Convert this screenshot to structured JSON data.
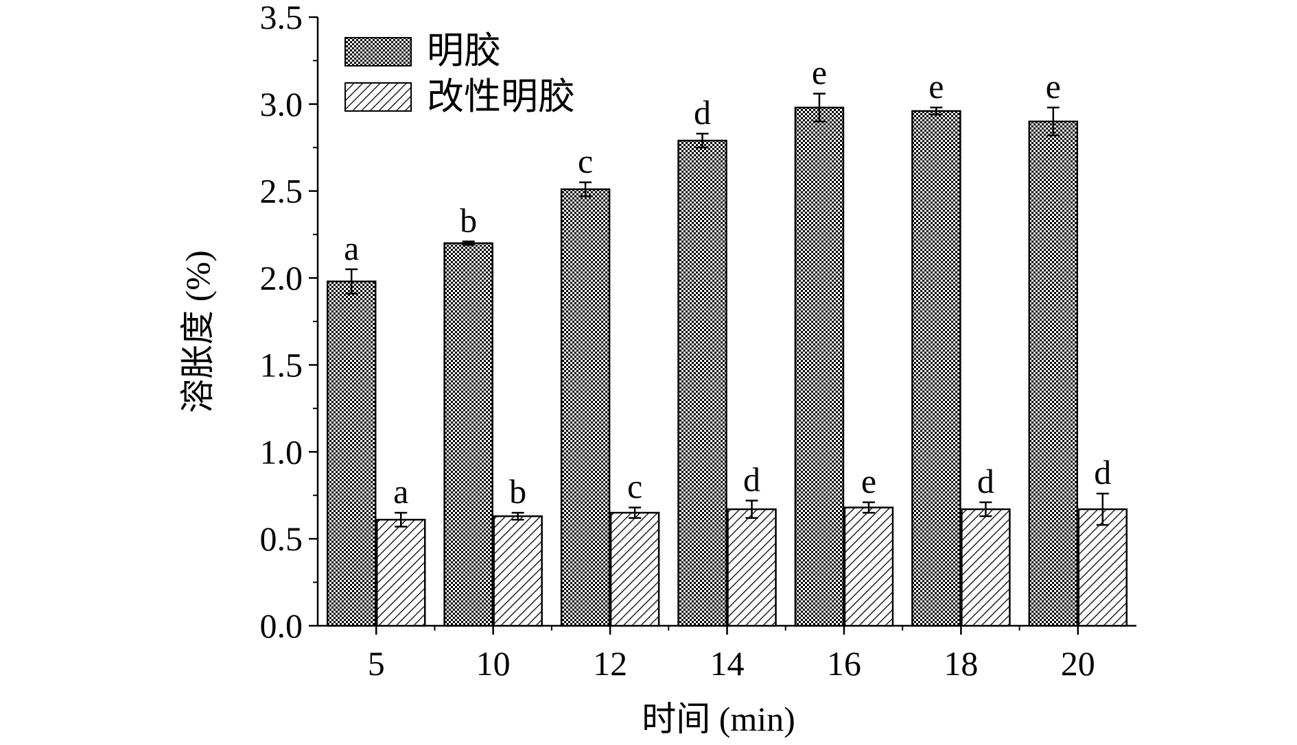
{
  "chart_data": {
    "type": "bar",
    "xlabel": "时间 (min)",
    "ylabel": "溶胀度 (%)",
    "ylim": [
      0,
      3.5
    ],
    "yticks": [
      "0.0",
      "0.5",
      "1.0",
      "1.5",
      "2.0",
      "2.5",
      "3.0",
      "3.5"
    ],
    "categories": [
      "5",
      "10",
      "12",
      "14",
      "16",
      "18",
      "20"
    ],
    "legend_position": "top-left",
    "grid": false,
    "series": [
      {
        "name": "明胶",
        "pattern": "dotted-grid",
        "color": "#000000",
        "values": [
          1.98,
          2.2,
          2.51,
          2.79,
          2.98,
          2.96,
          2.9
        ],
        "errors": [
          0.07,
          0.01,
          0.04,
          0.04,
          0.08,
          0.02,
          0.08
        ],
        "significance_labels": [
          "a",
          "b",
          "c",
          "d",
          "e",
          "e",
          "e"
        ]
      },
      {
        "name": "改性明胶",
        "pattern": "diagonal-hatch",
        "color": "#000000",
        "values": [
          0.61,
          0.63,
          0.65,
          0.67,
          0.68,
          0.67,
          0.67
        ],
        "errors": [
          0.04,
          0.02,
          0.03,
          0.05,
          0.03,
          0.04,
          0.09
        ],
        "significance_labels": [
          "a",
          "b",
          "c",
          "d",
          "e",
          "d",
          "d"
        ]
      }
    ]
  }
}
